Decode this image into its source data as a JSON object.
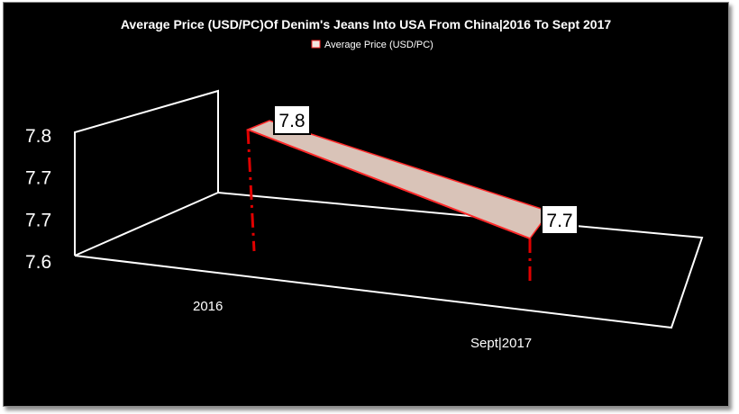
{
  "chart_data": {
    "type": "area",
    "title": "Average Price (USD/PC)Of Denim's Jeans Into USA From China|2016 To Sept 2017",
    "categories": [
      "2016",
      "Sept|2017"
    ],
    "series": [
      {
        "name": "Average Price (USD/PC)",
        "values": [
          7.8,
          7.7
        ]
      }
    ],
    "data_labels": [
      "7.8",
      "7.7"
    ],
    "y_tick_labels": [
      "7.6",
      "7.7",
      "7.7",
      "7.8"
    ],
    "ylim": [
      7.6,
      7.8
    ],
    "grid": false,
    "legend_position": "top",
    "view": "3d",
    "colors": {
      "background": "#000000",
      "fill": "#d9c3b8",
      "edge": "#ff2a2a",
      "axis": "#ffffff",
      "drop_line": "#e00000"
    }
  }
}
